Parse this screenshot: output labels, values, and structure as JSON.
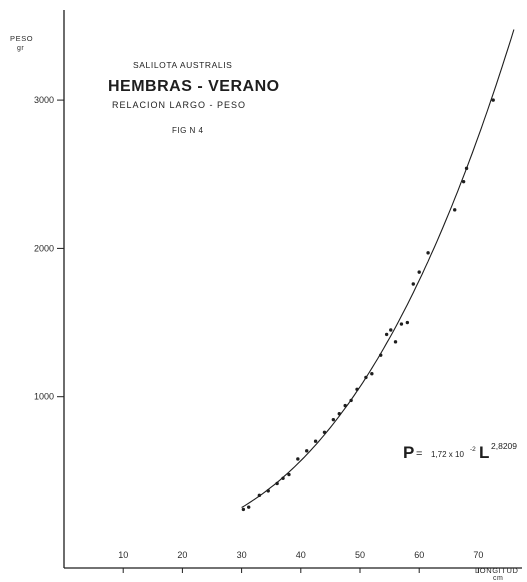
{
  "chart_data": {
    "type": "scatter",
    "title_species": "SALILOTA AUSTRALIS",
    "title": "HEMBRAS - VERANO",
    "subtitle": "RELACION LARGO - PESO",
    "figure_label": "FIG N 4",
    "ylabel": "PESO",
    "ylabel_unit": "gr",
    "xlabel": "LONGITUD",
    "xlabel_unit": "cm",
    "xlim": [
      0,
      78
    ],
    "ylim": [
      0,
      3600
    ],
    "x_ticks": [
      10,
      20,
      30,
      40,
      50,
      60,
      70
    ],
    "y_ticks": [
      1000,
      2000,
      3000
    ],
    "y_tick_labels": [
      "1000",
      "2000",
      "3000"
    ],
    "equation": {
      "prefix": "P",
      "equals": "=",
      "coefficient": "1,72 x 10",
      "coefficient_exp": "-2",
      "variable": "L",
      "exponent": "2,8209"
    },
    "fit": {
      "a": 0.0172,
      "b": 2.8209,
      "x_range": [
        30,
        76
      ]
    },
    "series": [
      {
        "points": [
          [
            30.3,
            240
          ],
          [
            31.2,
            255
          ],
          [
            33.0,
            335
          ],
          [
            34.5,
            365
          ],
          [
            36.0,
            415
          ],
          [
            37.0,
            450
          ],
          [
            38.0,
            475
          ],
          [
            39.5,
            580
          ],
          [
            41.0,
            635
          ],
          [
            42.5,
            700
          ],
          [
            44.0,
            760
          ],
          [
            45.5,
            845
          ],
          [
            46.5,
            885
          ],
          [
            47.5,
            940
          ],
          [
            48.5,
            975
          ],
          [
            49.5,
            1050
          ],
          [
            51.0,
            1130
          ],
          [
            52.0,
            1155
          ],
          [
            53.5,
            1280
          ],
          [
            54.5,
            1420
          ],
          [
            55.2,
            1450
          ],
          [
            56.0,
            1370
          ],
          [
            57.0,
            1490
          ],
          [
            58.0,
            1500
          ],
          [
            59.0,
            1760
          ],
          [
            60.0,
            1840
          ],
          [
            61.5,
            1970
          ],
          [
            66.0,
            2260
          ],
          [
            67.5,
            2450
          ],
          [
            68.0,
            2540
          ],
          [
            72.5,
            3000
          ]
        ]
      }
    ]
  }
}
